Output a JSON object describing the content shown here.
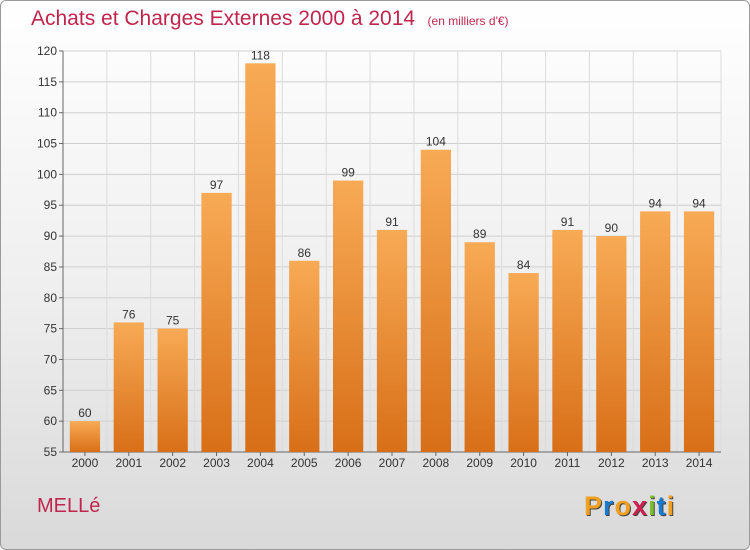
{
  "header": {
    "title": "Achats et Charges Externes 2000 à 2014",
    "unit": "(en milliers d'€)"
  },
  "commune": "MELLé",
  "logo": {
    "letters": [
      "P",
      "r",
      "o",
      "x",
      "i",
      "t",
      "i"
    ],
    "colors": [
      "#f0a020",
      "#1a7ad0",
      "#f0a020",
      "#d02050",
      "#7cbf2a",
      "#1a7ad0",
      "#f0a020"
    ]
  },
  "chart_data": {
    "type": "bar",
    "categories": [
      "2000",
      "2001",
      "2002",
      "2003",
      "2004",
      "2005",
      "2006",
      "2007",
      "2008",
      "2009",
      "2010",
      "2011",
      "2012",
      "2013",
      "2014"
    ],
    "values": [
      60,
      76,
      75,
      97,
      118,
      86,
      99,
      91,
      104,
      89,
      84,
      91,
      90,
      94,
      94
    ],
    "data_labels": [
      "60",
      "76",
      "75",
      "97",
      "118",
      "86",
      "99",
      "91",
      "104",
      "89",
      "84",
      "91",
      "90",
      "94",
      "94"
    ],
    "title": "Achats et Charges Externes 2000 à 2014",
    "ylim": [
      55,
      120
    ],
    "yticks": [
      55,
      60,
      65,
      70,
      75,
      80,
      85,
      90,
      95,
      100,
      105,
      110,
      115,
      120
    ],
    "grid": true,
    "bar_color_top": "#f8aa55",
    "bar_color_bottom": "#d86f18"
  }
}
